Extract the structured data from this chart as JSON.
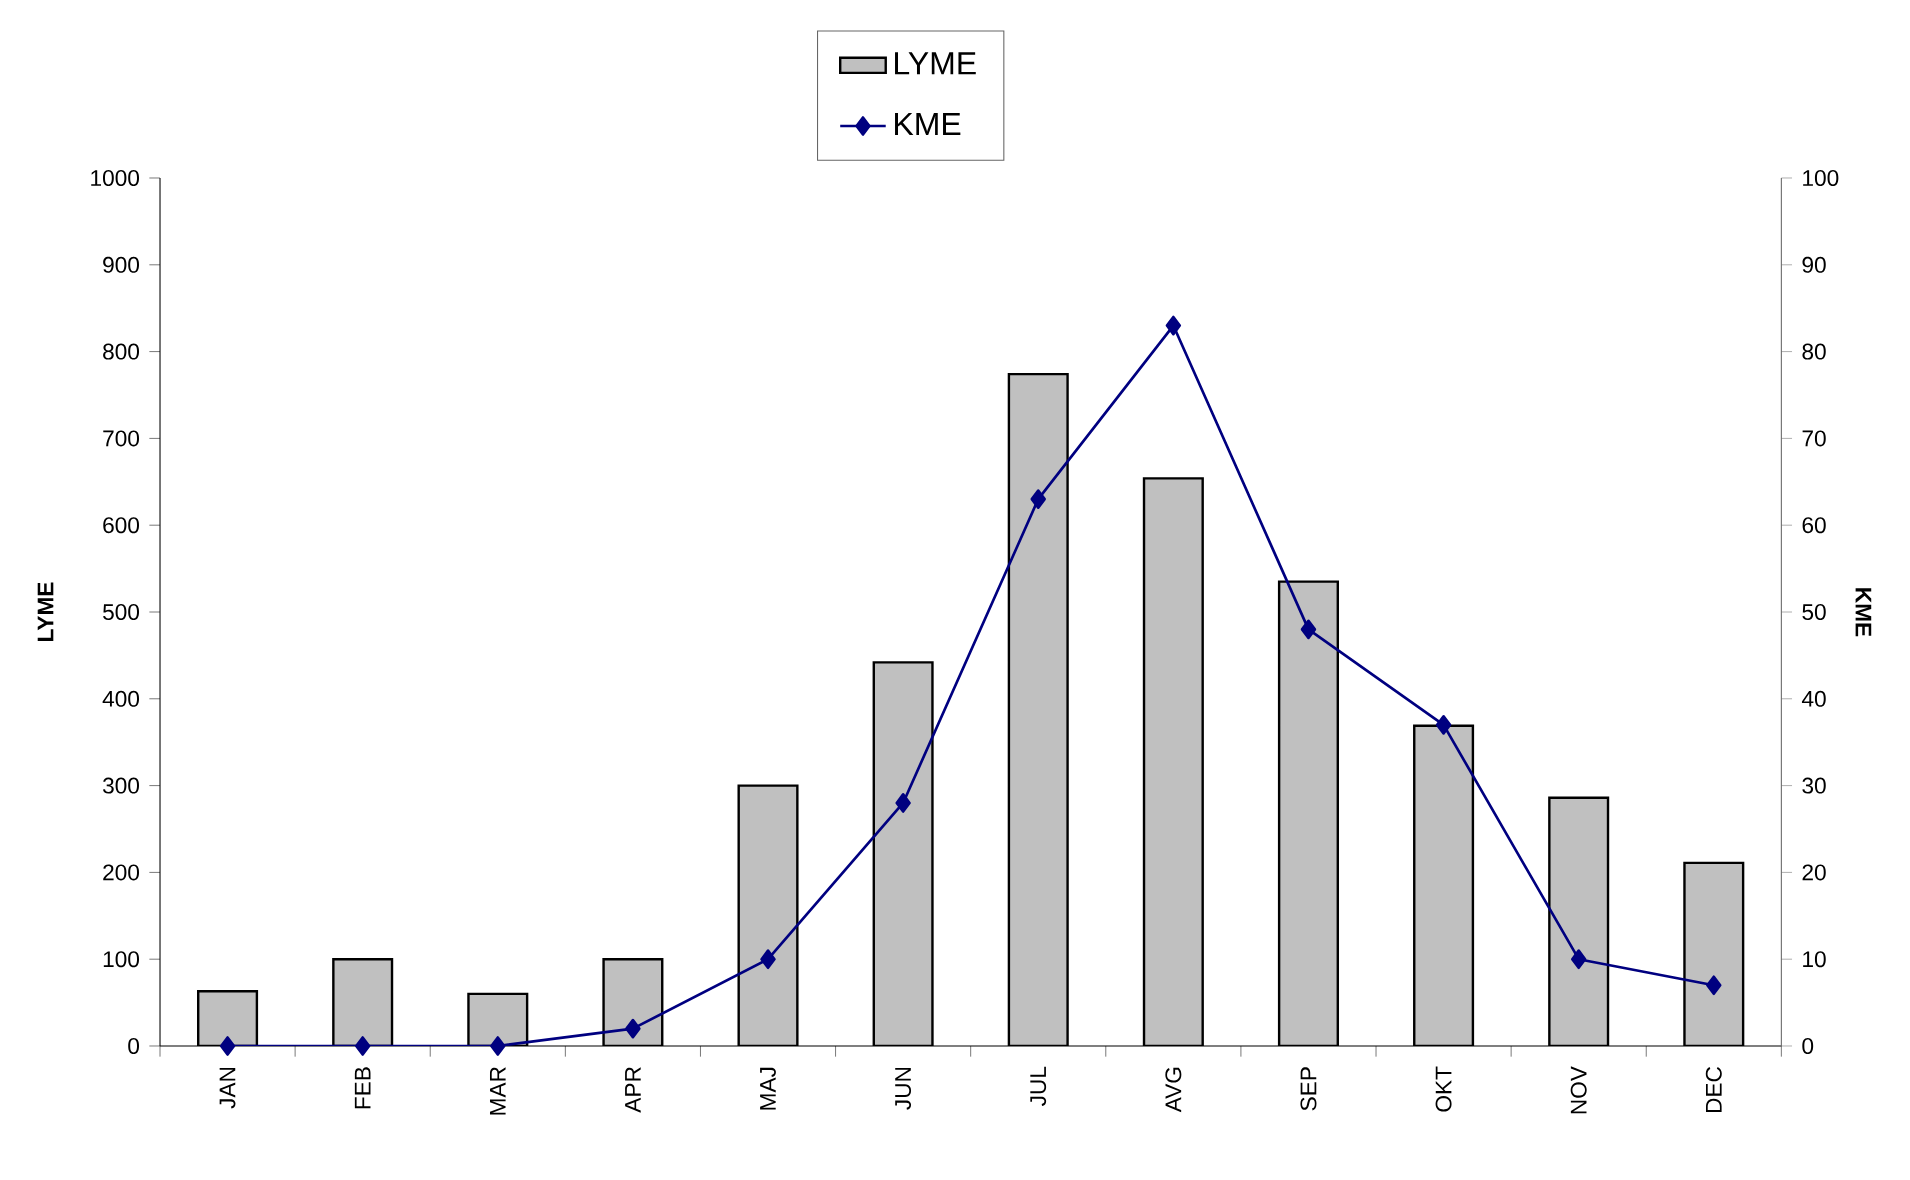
{
  "chart_data": {
    "type": "bar",
    "categories": [
      "JAN",
      "FEB",
      "MAR",
      "APR",
      "MAJ",
      "JUN",
      "JUL",
      "AVG",
      "SEP",
      "OKT",
      "NOV",
      "DEC"
    ],
    "series": [
      {
        "name": "LYME",
        "color": "#c0c0c0",
        "values": [
          63,
          100,
          60,
          100,
          300,
          442,
          774,
          654,
          535,
          369,
          286,
          211
        ]
      },
      {
        "name": "KME",
        "type": "line",
        "axis": "y2",
        "color": "#000080",
        "values": [
          0,
          0,
          0,
          2,
          10,
          28,
          63,
          83,
          48,
          37,
          10,
          7
        ]
      }
    ],
    "ylabel": "LYME",
    "y2label": "KME",
    "ylim": [
      0,
      1000
    ],
    "yticks": [
      0,
      100,
      200,
      300,
      400,
      500,
      600,
      700,
      800,
      900,
      1000
    ],
    "y2lim": [
      0,
      100
    ],
    "y2ticks": [
      0,
      10,
      20,
      30,
      40,
      50,
      60,
      70,
      80,
      90,
      100
    ],
    "legend": "top",
    "marker": "diamond"
  }
}
